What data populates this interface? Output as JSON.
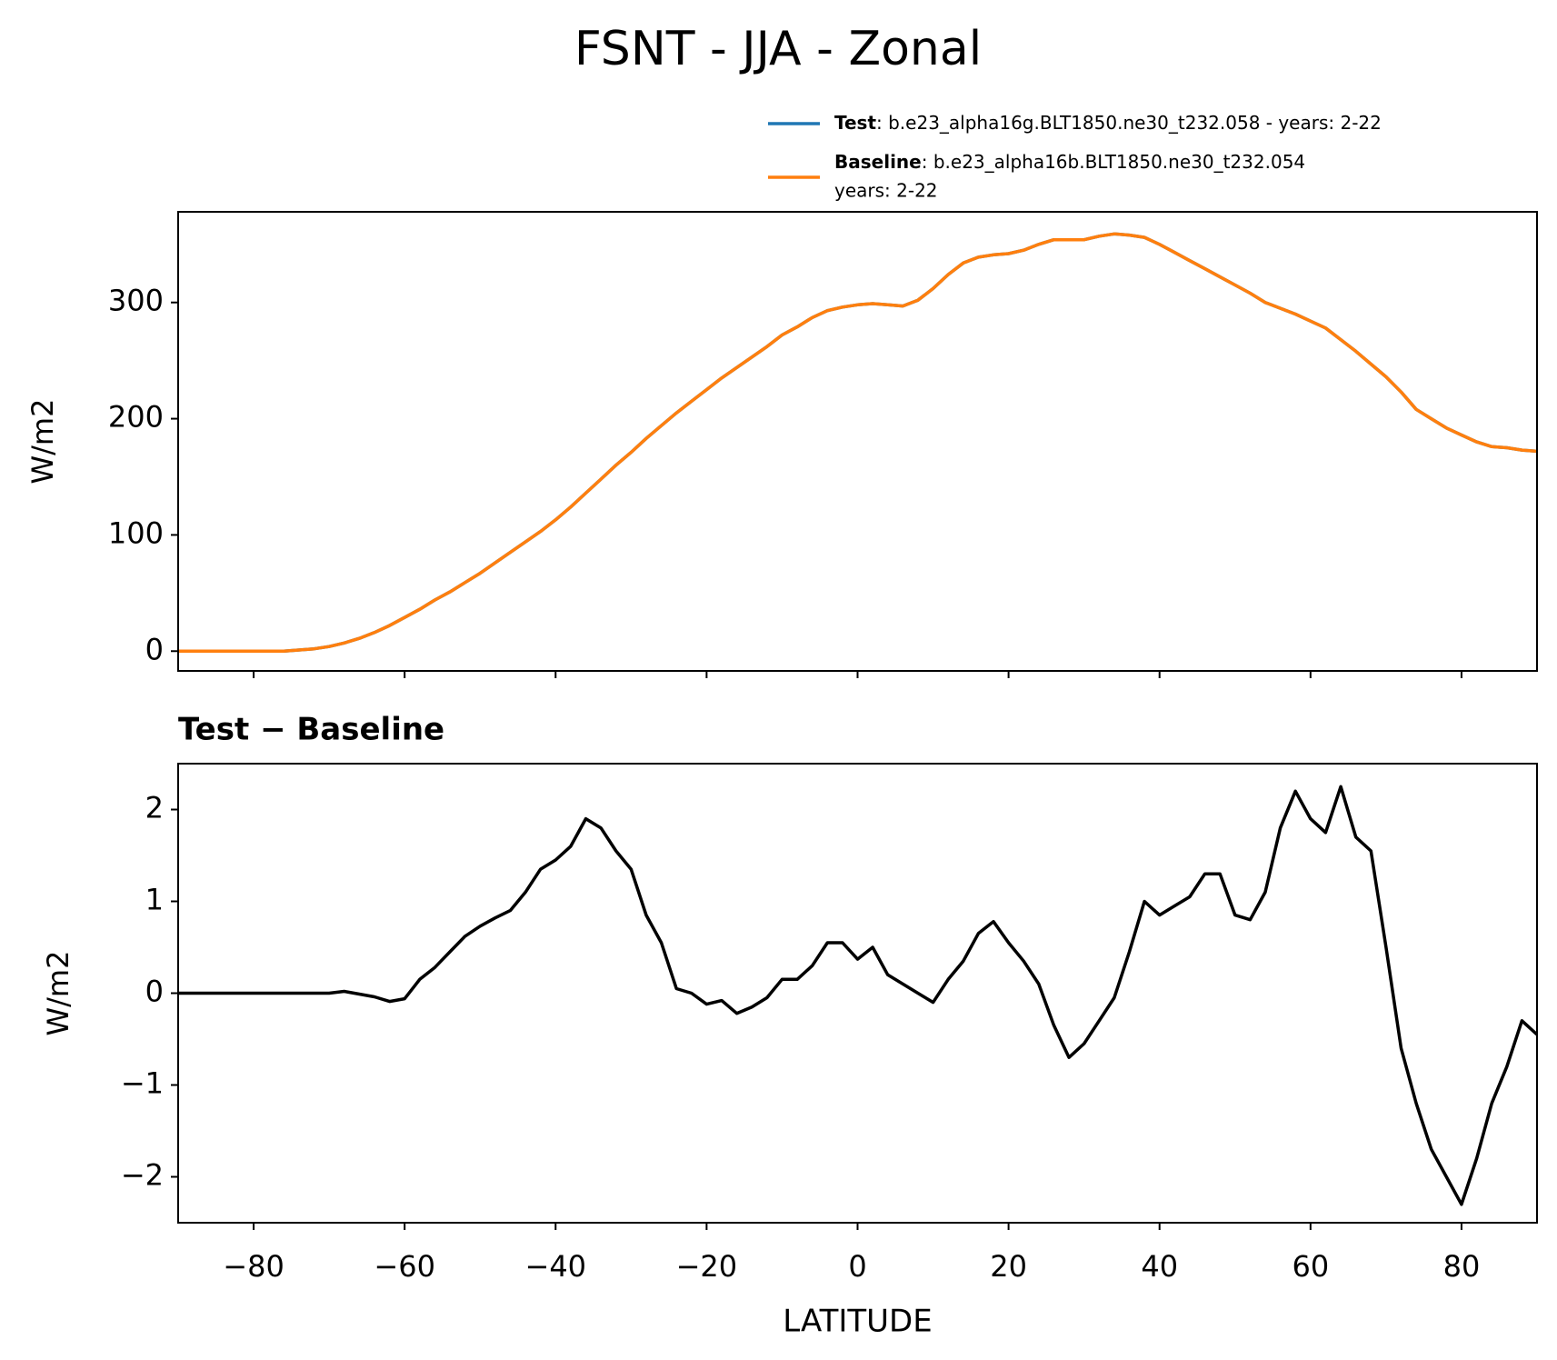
{
  "title": "FSNT - JJA - Zonal",
  "chart_data": [
    {
      "type": "line",
      "ylabel": "W/m2",
      "x": [
        -90,
        -88,
        -86,
        -84,
        -82,
        -80,
        -78,
        -76,
        -74,
        -72,
        -70,
        -68,
        -66,
        -64,
        -62,
        -60,
        -58,
        -56,
        -54,
        -52,
        -50,
        -48,
        -46,
        -44,
        -42,
        -40,
        -38,
        -36,
        -34,
        -32,
        -30,
        -28,
        -26,
        -24,
        -22,
        -20,
        -18,
        -16,
        -14,
        -12,
        -10,
        -8,
        -6,
        -4,
        -2,
        0,
        2,
        4,
        6,
        8,
        10,
        12,
        14,
        16,
        18,
        20,
        22,
        24,
        26,
        28,
        30,
        32,
        34,
        36,
        38,
        40,
        42,
        44,
        46,
        48,
        50,
        52,
        54,
        56,
        58,
        60,
        62,
        64,
        66,
        68,
        70,
        72,
        74,
        76,
        78,
        80,
        82,
        84,
        86,
        88,
        90
      ],
      "series": [
        {
          "name": "Test",
          "legend_text": [
            ": b.e23_alpha16g.BLT1850.ne30_t232.058 - years: 2-22"
          ],
          "color": "#1f77b4",
          "values": [
            0,
            0,
            0,
            0,
            0,
            0,
            0,
            0,
            1,
            2,
            4,
            7,
            11,
            16,
            22,
            29,
            36,
            44,
            51,
            59,
            67,
            76,
            85,
            94,
            103,
            113,
            124,
            136,
            148,
            160,
            171,
            183,
            194,
            205,
            215,
            225,
            235,
            244,
            253,
            262,
            272,
            279,
            287,
            293,
            296,
            298,
            299,
            298,
            297,
            302,
            312,
            324,
            334,
            339,
            341,
            342,
            345,
            350,
            354,
            354,
            354,
            357,
            359,
            358,
            356,
            350,
            343,
            336,
            329,
            322,
            315,
            308,
            300,
            295,
            290,
            284,
            278,
            268,
            258,
            247,
            236,
            223,
            208,
            200,
            192,
            186,
            180,
            176,
            175,
            173,
            172
          ]
        },
        {
          "name": "Baseline",
          "legend_text": [
            ": b.e23_alpha16b.BLT1850.ne30_t232.054",
            "years: 2-22"
          ],
          "color": "#ff7f0e",
          "values": [
            0,
            0,
            0,
            0,
            0,
            0,
            0,
            0,
            1,
            2,
            4,
            7,
            11,
            16,
            22,
            29,
            36,
            44,
            51,
            59,
            67,
            76,
            85,
            94,
            103,
            113,
            124,
            136,
            148,
            160,
            171,
            183,
            194,
            205,
            215,
            225,
            235,
            244,
            253,
            262,
            272,
            279,
            287,
            293,
            296,
            298,
            299,
            298,
            297,
            302,
            312,
            324,
            334,
            339,
            341,
            342,
            345,
            350,
            354,
            354,
            354,
            357,
            359,
            358,
            356,
            350,
            343,
            336,
            329,
            322,
            315,
            308,
            300,
            295,
            290,
            284,
            278,
            268,
            258,
            247,
            236,
            223,
            208,
            200,
            192,
            186,
            180,
            176,
            175,
            173,
            172
          ]
        }
      ],
      "xlim": [
        -90,
        90
      ],
      "xticks": [
        -80,
        -60,
        -40,
        -20,
        0,
        20,
        40,
        60,
        80
      ],
      "ylim": [
        -17,
        378
      ],
      "yticks": [
        0,
        100,
        200,
        300
      ]
    },
    {
      "type": "line",
      "title": "Test − Baseline",
      "xlabel": "LATITUDE",
      "ylabel": "W/m2",
      "x": [
        -90,
        -88,
        -86,
        -84,
        -82,
        -80,
        -78,
        -76,
        -74,
        -72,
        -70,
        -68,
        -66,
        -64,
        -62,
        -60,
        -58,
        -56,
        -54,
        -52,
        -50,
        -48,
        -46,
        -44,
        -42,
        -40,
        -38,
        -36,
        -34,
        -32,
        -30,
        -28,
        -26,
        -24,
        -22,
        -20,
        -18,
        -16,
        -14,
        -12,
        -10,
        -8,
        -6,
        -4,
        -2,
        0,
        2,
        4,
        6,
        8,
        10,
        12,
        14,
        16,
        18,
        20,
        22,
        24,
        26,
        28,
        30,
        32,
        34,
        36,
        38,
        40,
        42,
        44,
        46,
        48,
        50,
        52,
        54,
        56,
        58,
        60,
        62,
        64,
        66,
        68,
        70,
        72,
        74,
        76,
        78,
        80,
        82,
        84,
        86,
        88,
        90
      ],
      "series": [
        {
          "color": "#000000",
          "values": [
            0,
            0,
            0,
            0,
            0,
            0,
            0,
            0,
            0,
            0,
            0,
            0.02,
            -0.01,
            -0.04,
            -0.09,
            -0.06,
            0.15,
            0.28,
            0.45,
            0.62,
            0.73,
            0.82,
            0.9,
            1.1,
            1.35,
            1.45,
            1.6,
            1.9,
            1.8,
            1.55,
            1.35,
            0.85,
            0.55,
            0.05,
            0.0,
            -0.12,
            -0.08,
            -0.22,
            -0.15,
            -0.05,
            0.15,
            0.15,
            0.3,
            0.55,
            0.55,
            0.37,
            0.5,
            0.2,
            0.1,
            0.0,
            -0.1,
            0.15,
            0.35,
            0.65,
            0.78,
            0.55,
            0.35,
            0.1,
            -0.35,
            -0.7,
            -0.55,
            -0.3,
            -0.05,
            0.45,
            1.0,
            0.85,
            0.95,
            1.05,
            1.3,
            1.3,
            0.85,
            0.8,
            1.1,
            1.8,
            2.2,
            1.9,
            1.75,
            2.25,
            1.7,
            1.55,
            0.5,
            -0.6,
            -1.2,
            -1.7,
            -2.0,
            -2.3,
            -1.8,
            -1.2,
            -0.8,
            -0.3,
            -0.45
          ]
        }
      ],
      "xlim": [
        -90,
        90
      ],
      "xticks": [
        {
          "value": -80,
          "label": "−80"
        },
        {
          "value": -60,
          "label": "−60"
        },
        {
          "value": -40,
          "label": "−40"
        },
        {
          "value": -20,
          "label": "−20"
        },
        0,
        20,
        40,
        60,
        80
      ],
      "ylim": [
        -2.5,
        2.5
      ],
      "yticks": [
        {
          "value": -2,
          "label": "−2"
        },
        {
          "value": -1,
          "label": "−1"
        },
        0,
        1,
        2
      ]
    }
  ]
}
